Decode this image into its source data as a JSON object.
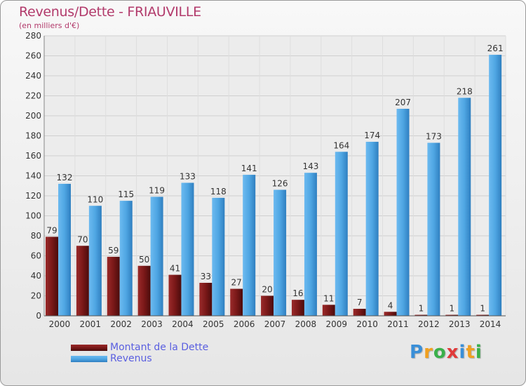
{
  "chart_data": {
    "type": "bar",
    "title": "Revenus/Dette - FRIAUVILLE",
    "subtitle": "(en milliers d'€)",
    "categories": [
      "2000",
      "2001",
      "2002",
      "2003",
      "2004",
      "2005",
      "2006",
      "2007",
      "2008",
      "2009",
      "2010",
      "2011",
      "2012",
      "2013",
      "2014"
    ],
    "series": [
      {
        "name": "Montant de la Dette",
        "color": "#7a1818",
        "values": [
          79,
          70,
          59,
          50,
          41,
          33,
          27,
          20,
          16,
          11,
          7,
          4,
          1,
          1,
          1
        ]
      },
      {
        "name": "Revenus",
        "color": "#4fa6e3",
        "values": [
          132,
          110,
          115,
          119,
          133,
          118,
          141,
          126,
          143,
          164,
          174,
          207,
          173,
          218,
          261
        ]
      }
    ],
    "ylim": [
      0,
      280
    ],
    "yticks": [
      0,
      20,
      40,
      60,
      80,
      100,
      120,
      140,
      160,
      180,
      200,
      220,
      240,
      260,
      280
    ],
    "grid": true,
    "legend_position": "bottom-left"
  },
  "brand": {
    "letters": [
      "P",
      "r",
      "o",
      "x",
      "i",
      "t",
      "i"
    ],
    "colors": [
      "#3a8fd8",
      "#f0a020",
      "#3ab04a",
      "#e03a3a",
      "#3a8fd8",
      "#f0a020",
      "#3ab04a"
    ]
  }
}
